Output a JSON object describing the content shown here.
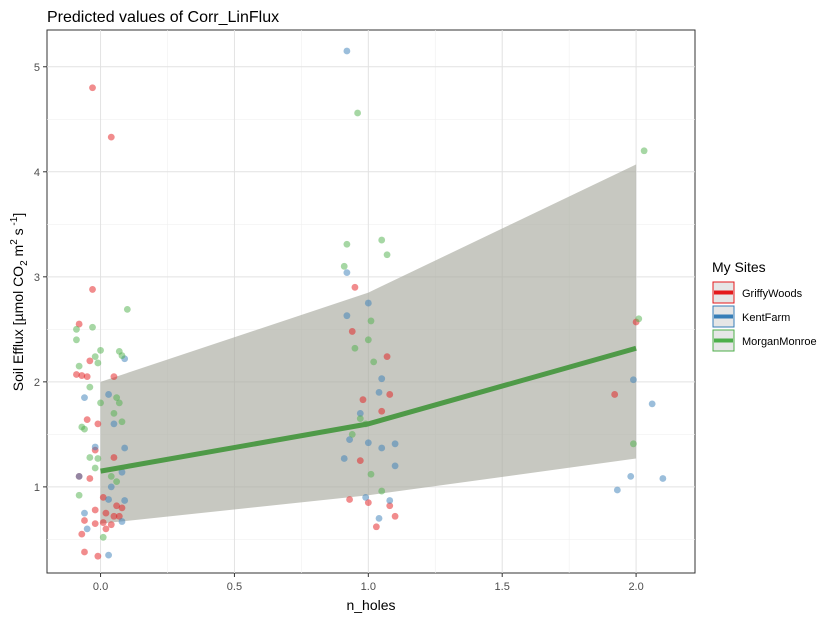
{
  "chart_data": {
    "type": "scatter",
    "title": "Predicted values of Corr_LinFlux",
    "xlabel": "n_holes",
    "ylabel": {
      "prefix": "Soil Efflux  [µmol CO",
      "sub": "2",
      "mid1": " m",
      "sup1": "2",
      "mid2": "  s",
      "sup2": " -1",
      "suffix": "]"
    },
    "xlim": [
      -0.2,
      2.22
    ],
    "ylim": [
      0.18,
      5.35
    ],
    "x_ticks": [
      {
        "value": 0.0,
        "label": "0.0"
      },
      {
        "value": 0.5,
        "label": "0.5"
      },
      {
        "value": 1.0,
        "label": "1.0"
      },
      {
        "value": 1.5,
        "label": "1.5"
      },
      {
        "value": 2.0,
        "label": "2.0"
      }
    ],
    "y_ticks": [
      {
        "value": 1,
        "label": "1"
      },
      {
        "value": 2,
        "label": "2"
      },
      {
        "value": 3,
        "label": "3"
      },
      {
        "value": 4,
        "label": "4"
      },
      {
        "value": 5,
        "label": "5"
      }
    ],
    "grid": true,
    "legend": {
      "title": "My Sites",
      "position": "right"
    },
    "fit": {
      "x": [
        0,
        1,
        2
      ],
      "y": [
        1.15,
        1.6,
        2.32
      ],
      "ci_lower": [
        0.65,
        0.92,
        1.27
      ],
      "ci_upper": [
        2.0,
        2.85,
        4.07
      ],
      "color": "#4f9a48",
      "band_color": "#a9aba0"
    },
    "series": [
      {
        "name": "GriffyWoods",
        "color": "#e41a1c",
        "points": [
          {
            "x": -0.03,
            "y": 4.8
          },
          {
            "x": 0.04,
            "y": 4.33
          },
          {
            "x": -0.03,
            "y": 2.88
          },
          {
            "x": -0.08,
            "y": 2.55
          },
          {
            "x": -0.04,
            "y": 2.2
          },
          {
            "x": -0.09,
            "y": 2.07
          },
          {
            "x": -0.07,
            "y": 2.06
          },
          {
            "x": -0.05,
            "y": 2.05
          },
          {
            "x": 0.05,
            "y": 2.05
          },
          {
            "x": -0.01,
            "y": 1.6
          },
          {
            "x": -0.05,
            "y": 1.64
          },
          {
            "x": -0.02,
            "y": 1.35
          },
          {
            "x": 0.05,
            "y": 1.28
          },
          {
            "x": -0.08,
            "y": 1.1
          },
          {
            "x": -0.04,
            "y": 1.08
          },
          {
            "x": 0.01,
            "y": 0.9
          },
          {
            "x": 0.06,
            "y": 0.82
          },
          {
            "x": 0.08,
            "y": 0.8
          },
          {
            "x": -0.02,
            "y": 0.78
          },
          {
            "x": 0.02,
            "y": 0.75
          },
          {
            "x": 0.07,
            "y": 0.72
          },
          {
            "x": -0.06,
            "y": 0.68
          },
          {
            "x": 0.01,
            "y": 0.66
          },
          {
            "x": 0.04,
            "y": 0.64
          },
          {
            "x": -0.02,
            "y": 0.65
          },
          {
            "x": -0.07,
            "y": 0.55
          },
          {
            "x": -0.06,
            "y": 0.38
          },
          {
            "x": -0.01,
            "y": 0.34
          },
          {
            "x": 0.02,
            "y": 0.6
          },
          {
            "x": 0.05,
            "y": 0.72
          },
          {
            "x": 0.95,
            "y": 2.9
          },
          {
            "x": 0.94,
            "y": 2.48
          },
          {
            "x": 1.07,
            "y": 2.24
          },
          {
            "x": 0.98,
            "y": 1.83
          },
          {
            "x": 1.08,
            "y": 1.88
          },
          {
            "x": 1.05,
            "y": 1.72
          },
          {
            "x": 0.97,
            "y": 1.25
          },
          {
            "x": 0.93,
            "y": 0.88
          },
          {
            "x": 1.0,
            "y": 0.85
          },
          {
            "x": 1.08,
            "y": 0.82
          },
          {
            "x": 1.1,
            "y": 0.72
          },
          {
            "x": 1.03,
            "y": 0.62
          },
          {
            "x": 1.92,
            "y": 1.88
          },
          {
            "x": 2.0,
            "y": 2.57
          }
        ]
      },
      {
        "name": "KentFarm",
        "color": "#377eb8",
        "points": [
          {
            "x": 0.92,
            "y": 5.15
          },
          {
            "x": 0.92,
            "y": 3.04
          },
          {
            "x": 1.0,
            "y": 2.75
          },
          {
            "x": 0.92,
            "y": 2.63
          },
          {
            "x": 1.05,
            "y": 2.03
          },
          {
            "x": 1.04,
            "y": 1.9
          },
          {
            "x": 0.97,
            "y": 1.7
          },
          {
            "x": 0.93,
            "y": 1.45
          },
          {
            "x": 1.0,
            "y": 1.42
          },
          {
            "x": 1.1,
            "y": 1.41
          },
          {
            "x": 1.05,
            "y": 1.37
          },
          {
            "x": 0.91,
            "y": 1.27
          },
          {
            "x": 1.1,
            "y": 1.2
          },
          {
            "x": 1.08,
            "y": 0.87
          },
          {
            "x": 1.04,
            "y": 0.7
          },
          {
            "x": 0.99,
            "y": 0.9
          },
          {
            "x": 0.09,
            "y": 2.22
          },
          {
            "x": 0.03,
            "y": 1.88
          },
          {
            "x": -0.06,
            "y": 1.85
          },
          {
            "x": 0.05,
            "y": 1.6
          },
          {
            "x": -0.02,
            "y": 1.38
          },
          {
            "x": 0.09,
            "y": 1.37
          },
          {
            "x": 0.08,
            "y": 1.14
          },
          {
            "x": -0.08,
            "y": 1.1
          },
          {
            "x": 0.04,
            "y": 1.0
          },
          {
            "x": 0.09,
            "y": 0.87
          },
          {
            "x": 0.03,
            "y": 0.88
          },
          {
            "x": -0.06,
            "y": 0.75
          },
          {
            "x": 0.08,
            "y": 0.67
          },
          {
            "x": -0.05,
            "y": 0.6
          },
          {
            "x": 0.03,
            "y": 0.35
          },
          {
            "x": 1.99,
            "y": 2.02
          },
          {
            "x": 2.06,
            "y": 1.79
          },
          {
            "x": 1.98,
            "y": 1.1
          },
          {
            "x": 2.1,
            "y": 1.08
          },
          {
            "x": 1.93,
            "y": 0.97
          }
        ]
      },
      {
        "name": "MorganMonroe",
        "color": "#4daf4a",
        "points": [
          {
            "x": 0.96,
            "y": 4.56
          },
          {
            "x": 1.05,
            "y": 3.35
          },
          {
            "x": 0.92,
            "y": 3.31
          },
          {
            "x": 1.07,
            "y": 3.21
          },
          {
            "x": 0.91,
            "y": 3.1
          },
          {
            "x": 1.01,
            "y": 2.58
          },
          {
            "x": 1.0,
            "y": 2.4
          },
          {
            "x": 0.95,
            "y": 2.32
          },
          {
            "x": 1.02,
            "y": 2.19
          },
          {
            "x": 0.97,
            "y": 1.65
          },
          {
            "x": 0.99,
            "y": 1.6
          },
          {
            "x": 1.01,
            "y": 1.12
          },
          {
            "x": 1.05,
            "y": 0.96
          },
          {
            "x": 0.94,
            "y": 1.5
          },
          {
            "x": 2.03,
            "y": 4.2
          },
          {
            "x": 2.01,
            "y": 2.6
          },
          {
            "x": 1.99,
            "y": 1.41
          },
          {
            "x": -0.09,
            "y": 2.5
          },
          {
            "x": -0.09,
            "y": 2.4
          },
          {
            "x": -0.08,
            "y": 2.15
          },
          {
            "x": -0.03,
            "y": 2.52
          },
          {
            "x": -0.02,
            "y": 2.24
          },
          {
            "x": 0.0,
            "y": 2.3
          },
          {
            "x": 0.07,
            "y": 2.29
          },
          {
            "x": 0.1,
            "y": 2.69
          },
          {
            "x": 0.08,
            "y": 2.25
          },
          {
            "x": -0.01,
            "y": 2.18
          },
          {
            "x": -0.04,
            "y": 1.95
          },
          {
            "x": 0.06,
            "y": 1.85
          },
          {
            "x": 0.07,
            "y": 1.8
          },
          {
            "x": 0.05,
            "y": 1.7
          },
          {
            "x": 0.0,
            "y": 1.8
          },
          {
            "x": -0.07,
            "y": 1.57
          },
          {
            "x": -0.06,
            "y": 1.55
          },
          {
            "x": 0.08,
            "y": 1.62
          },
          {
            "x": -0.04,
            "y": 1.28
          },
          {
            "x": -0.01,
            "y": 1.27
          },
          {
            "x": -0.02,
            "y": 1.18
          },
          {
            "x": -0.08,
            "y": 0.92
          },
          {
            "x": 0.04,
            "y": 1.1
          },
          {
            "x": 0.06,
            "y": 1.05
          },
          {
            "x": 0.01,
            "y": 0.52
          }
        ]
      }
    ]
  }
}
